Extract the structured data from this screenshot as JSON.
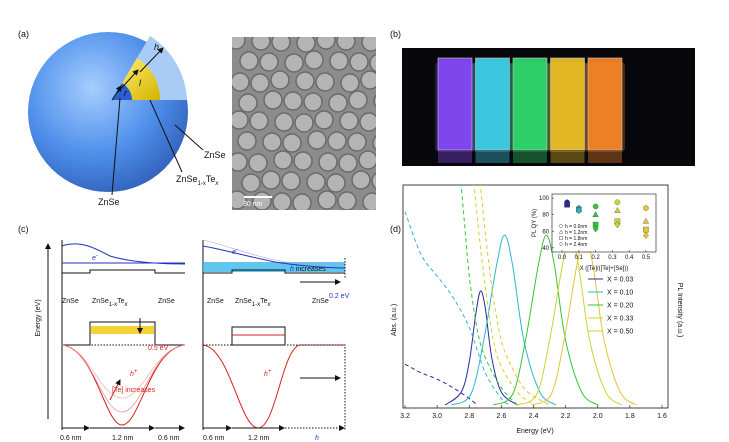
{
  "panel_a": {
    "label": "(a)",
    "h": "h",
    "l": "l",
    "r": "r",
    "shell": "ZnSe",
    "alloy": [
      "ZnSe",
      "1-x",
      "Te",
      "x"
    ],
    "core": "ZnSe",
    "scale_bar": "30 nm"
  },
  "panel_b": {
    "label": "(b)"
  },
  "panel_c": {
    "label": "(c)",
    "y_label": "Energy (eV)",
    "electron": [
      "e",
      "-"
    ],
    "electron_right": [
      "e",
      "-"
    ],
    "h_increases": [
      "h",
      " increases"
    ],
    "offset_right": "0.2 eV",
    "offset_left": "0.5 eV",
    "left_layers": {
      "shell1": "ZnSe",
      "alloy": [
        "ZnSe",
        "1-x",
        "Te",
        "x"
      ],
      "shell2": "ZnSe"
    },
    "right_layers": {
      "shell1": "ZnSe",
      "alloy": [
        "ZnSe",
        "1-x",
        "Te",
        "x"
      ],
      "shell2": "ZnSe"
    },
    "hole_left": [
      "h",
      "+"
    ],
    "hole_right": [
      "h",
      "+"
    ],
    "te_increases": "[Te] increases",
    "widths_left": [
      "0.6 nm",
      "1.2 nm",
      "0.6 nm"
    ],
    "widths_right": [
      "0.6 nm",
      "1.2 nm"
    ],
    "h_axis": "h"
  },
  "chart_data": {
    "type": "line",
    "label": "(d)",
    "x_label": "Energy (eV)",
    "y_label": "Abs. (a.u.)",
    "y2_label": "PL Intensity (a.u.)",
    "xlim": [
      3.2,
      1.6
    ],
    "xticks": [
      3.2,
      {
        "value": 3,
        "label": "3.0"
      },
      2.8,
      2.6,
      2.4,
      2.2,
      {
        "value": 2,
        "label": "2.0"
      },
      1.8,
      1.6
    ],
    "ylim": [
      0,
      1
    ],
    "series": [
      {
        "name": "X = 0.03",
        "color": "#2a2a9e",
        "pl_x": [
          2.95,
          2.85,
          2.8,
          2.76,
          2.73,
          2.7,
          2.66,
          2.6,
          2.5
        ],
        "pl": [
          0,
          0.06,
          0.2,
          0.42,
          0.53,
          0.45,
          0.22,
          0.06,
          0
        ],
        "abs_x": [
          3.2,
          3.1,
          3.0,
          2.9,
          2.8,
          2.75
        ],
        "abs": [
          0.19,
          0.15,
          0.12,
          0.08,
          0.03,
          0
        ]
      },
      {
        "name": "X = 0.10",
        "color": "#2ab8c8",
        "pl_x": [
          2.91,
          2.79,
          2.71,
          2.63,
          2.58,
          2.53,
          2.46,
          2.36,
          2.26
        ],
        "pl": [
          0,
          0.05,
          0.3,
          0.65,
          0.79,
          0.65,
          0.3,
          0.06,
          0
        ],
        "abs_x": [
          3.2,
          3.1,
          3.0,
          2.9,
          2.8,
          2.7,
          2.6,
          2.55
        ],
        "abs": [
          0.9,
          0.7,
          0.6,
          0.5,
          0.36,
          0.15,
          0.03,
          0
        ]
      },
      {
        "name": "X = 0.20",
        "color": "#33c43a",
        "pl_x": [
          2.65,
          2.53,
          2.45,
          2.37,
          2.32,
          2.27,
          2.2,
          2.1,
          2.0
        ],
        "pl": [
          0,
          0.05,
          0.3,
          0.65,
          0.79,
          0.65,
          0.3,
          0.06,
          0
        ],
        "abs_x": [
          2.86,
          2.83,
          2.8,
          2.75,
          2.7,
          2.6,
          2.5
        ],
        "abs": [
          1.1,
          0.85,
          0.6,
          0.35,
          0.22,
          0.08,
          0
        ]
      },
      {
        "name": "X = 0.33",
        "color": "#c9d62e",
        "pl_x": [
          2.5,
          2.38,
          2.3,
          2.22,
          2.17,
          2.12,
          2.05,
          1.95,
          1.85
        ],
        "pl": [
          0,
          0.05,
          0.3,
          0.65,
          0.79,
          0.65,
          0.3,
          0.06,
          0
        ],
        "abs_x": [
          2.78,
          2.74,
          2.7,
          2.65,
          2.6,
          2.5,
          2.4
        ],
        "abs": [
          1.1,
          0.8,
          0.55,
          0.3,
          0.18,
          0.06,
          0
        ]
      },
      {
        "name": "X = 0.50",
        "color": "#e8c430",
        "pl_x": [
          2.41,
          2.29,
          2.21,
          2.13,
          2.08,
          2.03,
          1.96,
          1.86,
          1.76
        ],
        "pl": [
          0,
          0.05,
          0.3,
          0.65,
          0.79,
          0.65,
          0.3,
          0.06,
          0
        ],
        "abs_x": [
          2.74,
          2.7,
          2.65,
          2.6,
          2.55,
          2.45,
          2.3
        ],
        "abs": [
          1.1,
          0.8,
          0.5,
          0.3,
          0.2,
          0.07,
          0
        ]
      }
    ],
    "inset": {
      "x_label": "X ([Te]/([Te]+[Se]))",
      "y_label": "PL QY (%)",
      "xlim": [
        -0.06,
        0.56
      ],
      "xticks": [
        {
          "value": 0,
          "label": "0.0"
        },
        0.1,
        0.2,
        0.3,
        0.4,
        0.5
      ],
      "ylim": [
        35,
        105
      ],
      "yticks": [
        40,
        60,
        80,
        100
      ],
      "x": [
        0.03,
        0.1,
        0.2,
        0.33,
        0.5
      ],
      "series": [
        {
          "name": "h = 0.6nm",
          "marker": "circle",
          "values": [
            95,
            88,
            90,
            95,
            88
          ]
        },
        {
          "name": "h = 1.2nm",
          "marker": "triangle",
          "values": [
            93,
            87,
            80,
            85,
            72
          ]
        },
        {
          "name": "h = 1.8nm",
          "marker": "square",
          "values": [
            92,
            86,
            68,
            72,
            62
          ]
        },
        {
          "name": "h = 2.4nm",
          "marker": "diamond",
          "values": [
            94,
            85,
            63,
            68,
            55
          ]
        }
      ]
    }
  }
}
